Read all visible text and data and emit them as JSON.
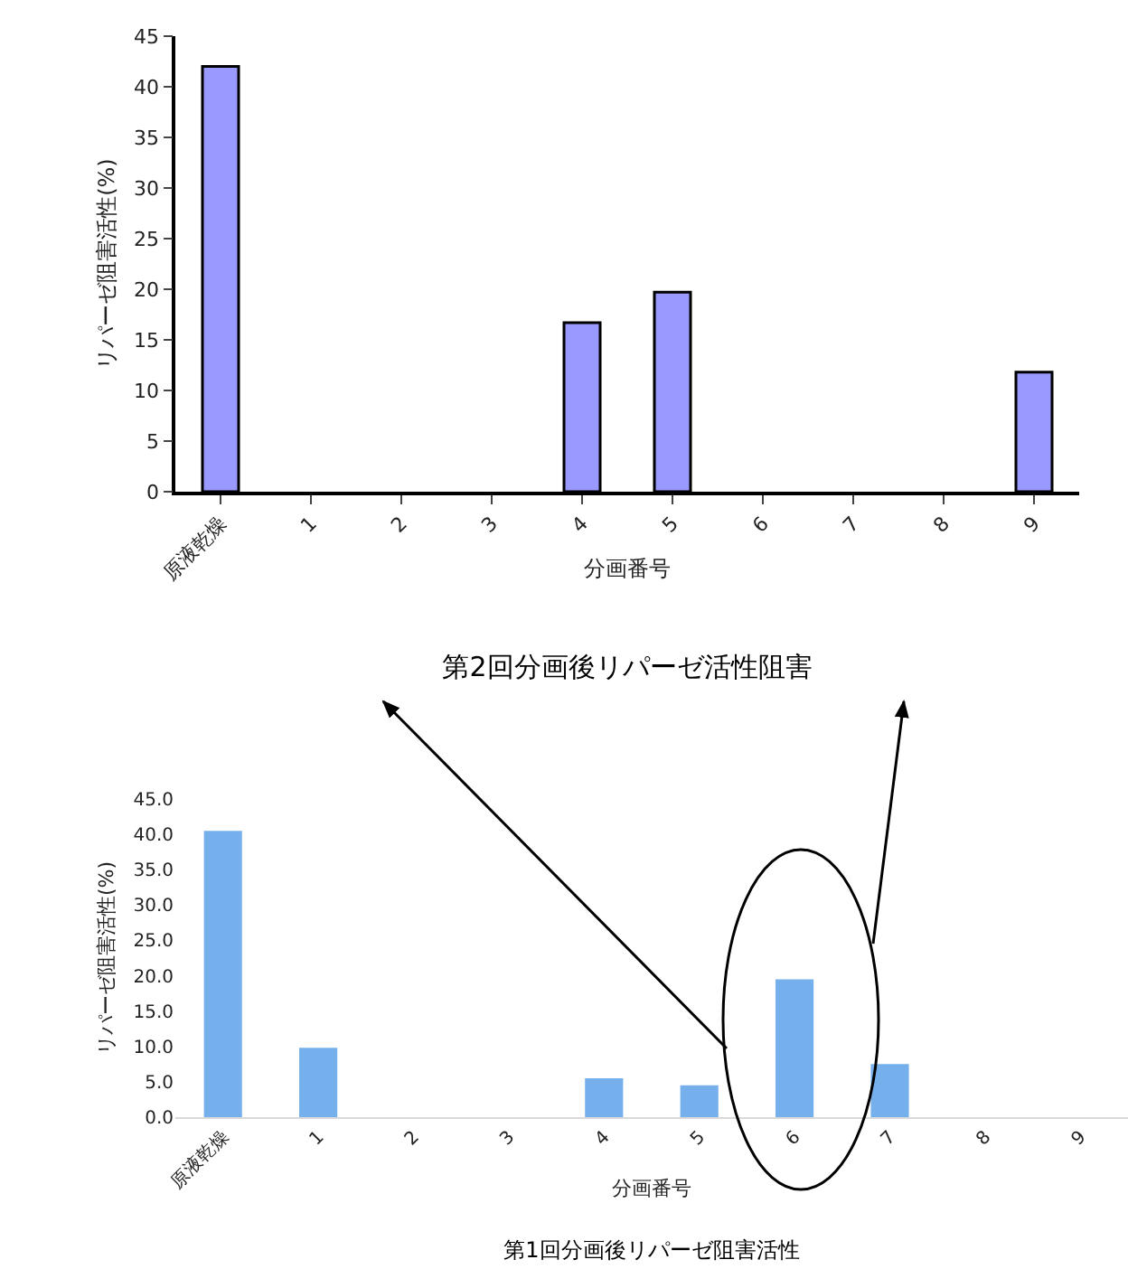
{
  "chart_data": [
    {
      "type": "bar",
      "title": "第2回分画後リパーゼ活性阻害",
      "xlabel": "分画番号",
      "ylabel": "リパーゼ阻害活性(%)",
      "categories": [
        "原液乾燥",
        "1",
        "2",
        "3",
        "4",
        "5",
        "6",
        "7",
        "8",
        "9"
      ],
      "values": [
        42,
        0,
        0,
        0,
        16.7,
        19.7,
        0,
        0,
        0,
        11.8
      ],
      "color": "#9999ff",
      "ylim": [
        0,
        45
      ],
      "yticks": [
        0,
        5,
        10,
        15,
        20,
        25,
        30,
        35,
        40,
        45
      ],
      "grid": false,
      "legend": false
    },
    {
      "type": "bar",
      "title": "第1回分画後リパーゼ阻害活性",
      "xlabel": "分画番号",
      "ylabel": "リパーゼ阻害活性(%)",
      "categories": [
        "原液乾燥",
        "1",
        "2",
        "3",
        "4",
        "5",
        "6",
        "7",
        "8",
        "9"
      ],
      "values": [
        40.5,
        9.8,
        0,
        0,
        5.5,
        4.5,
        19.5,
        7.5,
        0,
        0
      ],
      "color": "#76b0ec",
      "ylim": [
        0,
        45
      ],
      "yticks": [
        {
          "value": 0,
          "label": "0.0"
        },
        {
          "value": 5,
          "label": "5.0"
        },
        {
          "value": 10,
          "label": "10.0"
        },
        {
          "value": 15,
          "label": "15.0"
        },
        {
          "value": 20,
          "label": "20.0"
        },
        {
          "value": 25,
          "label": "25.0"
        },
        {
          "value": 30,
          "label": "30.0"
        },
        {
          "value": 35,
          "label": "35.0"
        },
        {
          "value": 40,
          "label": "40.0"
        },
        {
          "value": 45,
          "label": "45.0"
        }
      ],
      "grid": false,
      "legend": false
    }
  ]
}
